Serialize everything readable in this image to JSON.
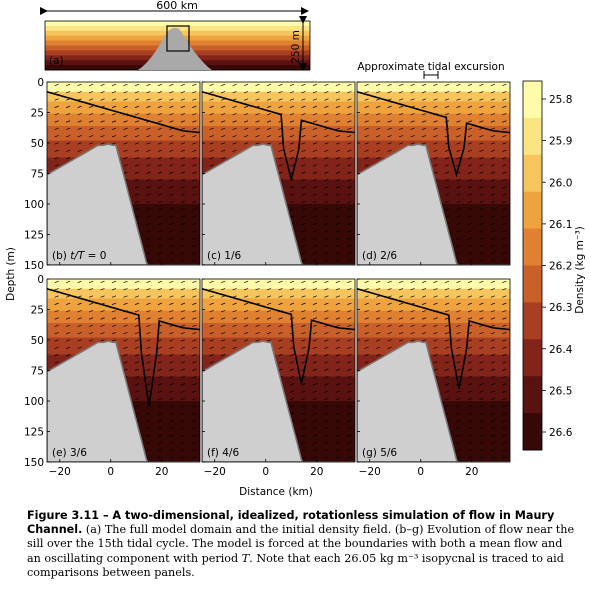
{
  "figure": {
    "panel_a": {
      "label": "(a)",
      "width_label": "600 km",
      "depth_label": "250 m"
    },
    "tidal_excursion_label": "Approximate tidal excursion",
    "panels": [
      {
        "label": "(b) t/T = 0",
        "prefix": "(b) ",
        "t_symbol": "t/T",
        "suffix": " = 0"
      },
      {
        "label": "(c) 1/6"
      },
      {
        "label": "(d) 2/6"
      },
      {
        "label": "(e) 3/6"
      },
      {
        "label": "(f) 4/6"
      },
      {
        "label": "(g) 5/6"
      }
    ],
    "y_axis": {
      "label": "Depth (m)",
      "ticks": [
        "0",
        "25",
        "50",
        "75",
        "100",
        "125",
        "150"
      ]
    },
    "x_axis": {
      "label": "Distance (km)",
      "ticks": [
        "−20",
        "0",
        "20"
      ]
    },
    "colorbar": {
      "label": "Density (kg m⁻³)",
      "ticks": [
        "25.8",
        "25.9",
        "26.0",
        "26.1",
        "26.2",
        "26.3",
        "26.4",
        "26.5",
        "26.6"
      ],
      "colors": [
        "#fefcab",
        "#fbe582",
        "#f6c55d",
        "#eea33e",
        "#e08132",
        "#c9602a",
        "#a83f22",
        "#82241a",
        "#5a1210",
        "#360806"
      ]
    }
  },
  "caption": {
    "title": "Figure 3.11 – A two-dimensional, idealized, rotationless simulation of flow in Maury Channel.",
    "text_1": " (a) The full model domain and the initial density field. (b–g) Evolution of flow near the sill over the 15th tidal cycle. The model is forced at the boundaries with both a mean flow and an oscillating component with period ",
    "period_symbol": "T",
    "text_2": ". Note that each 26.05 kg m⁻³ isopycnal is traced to aid comparisons between panels."
  }
}
